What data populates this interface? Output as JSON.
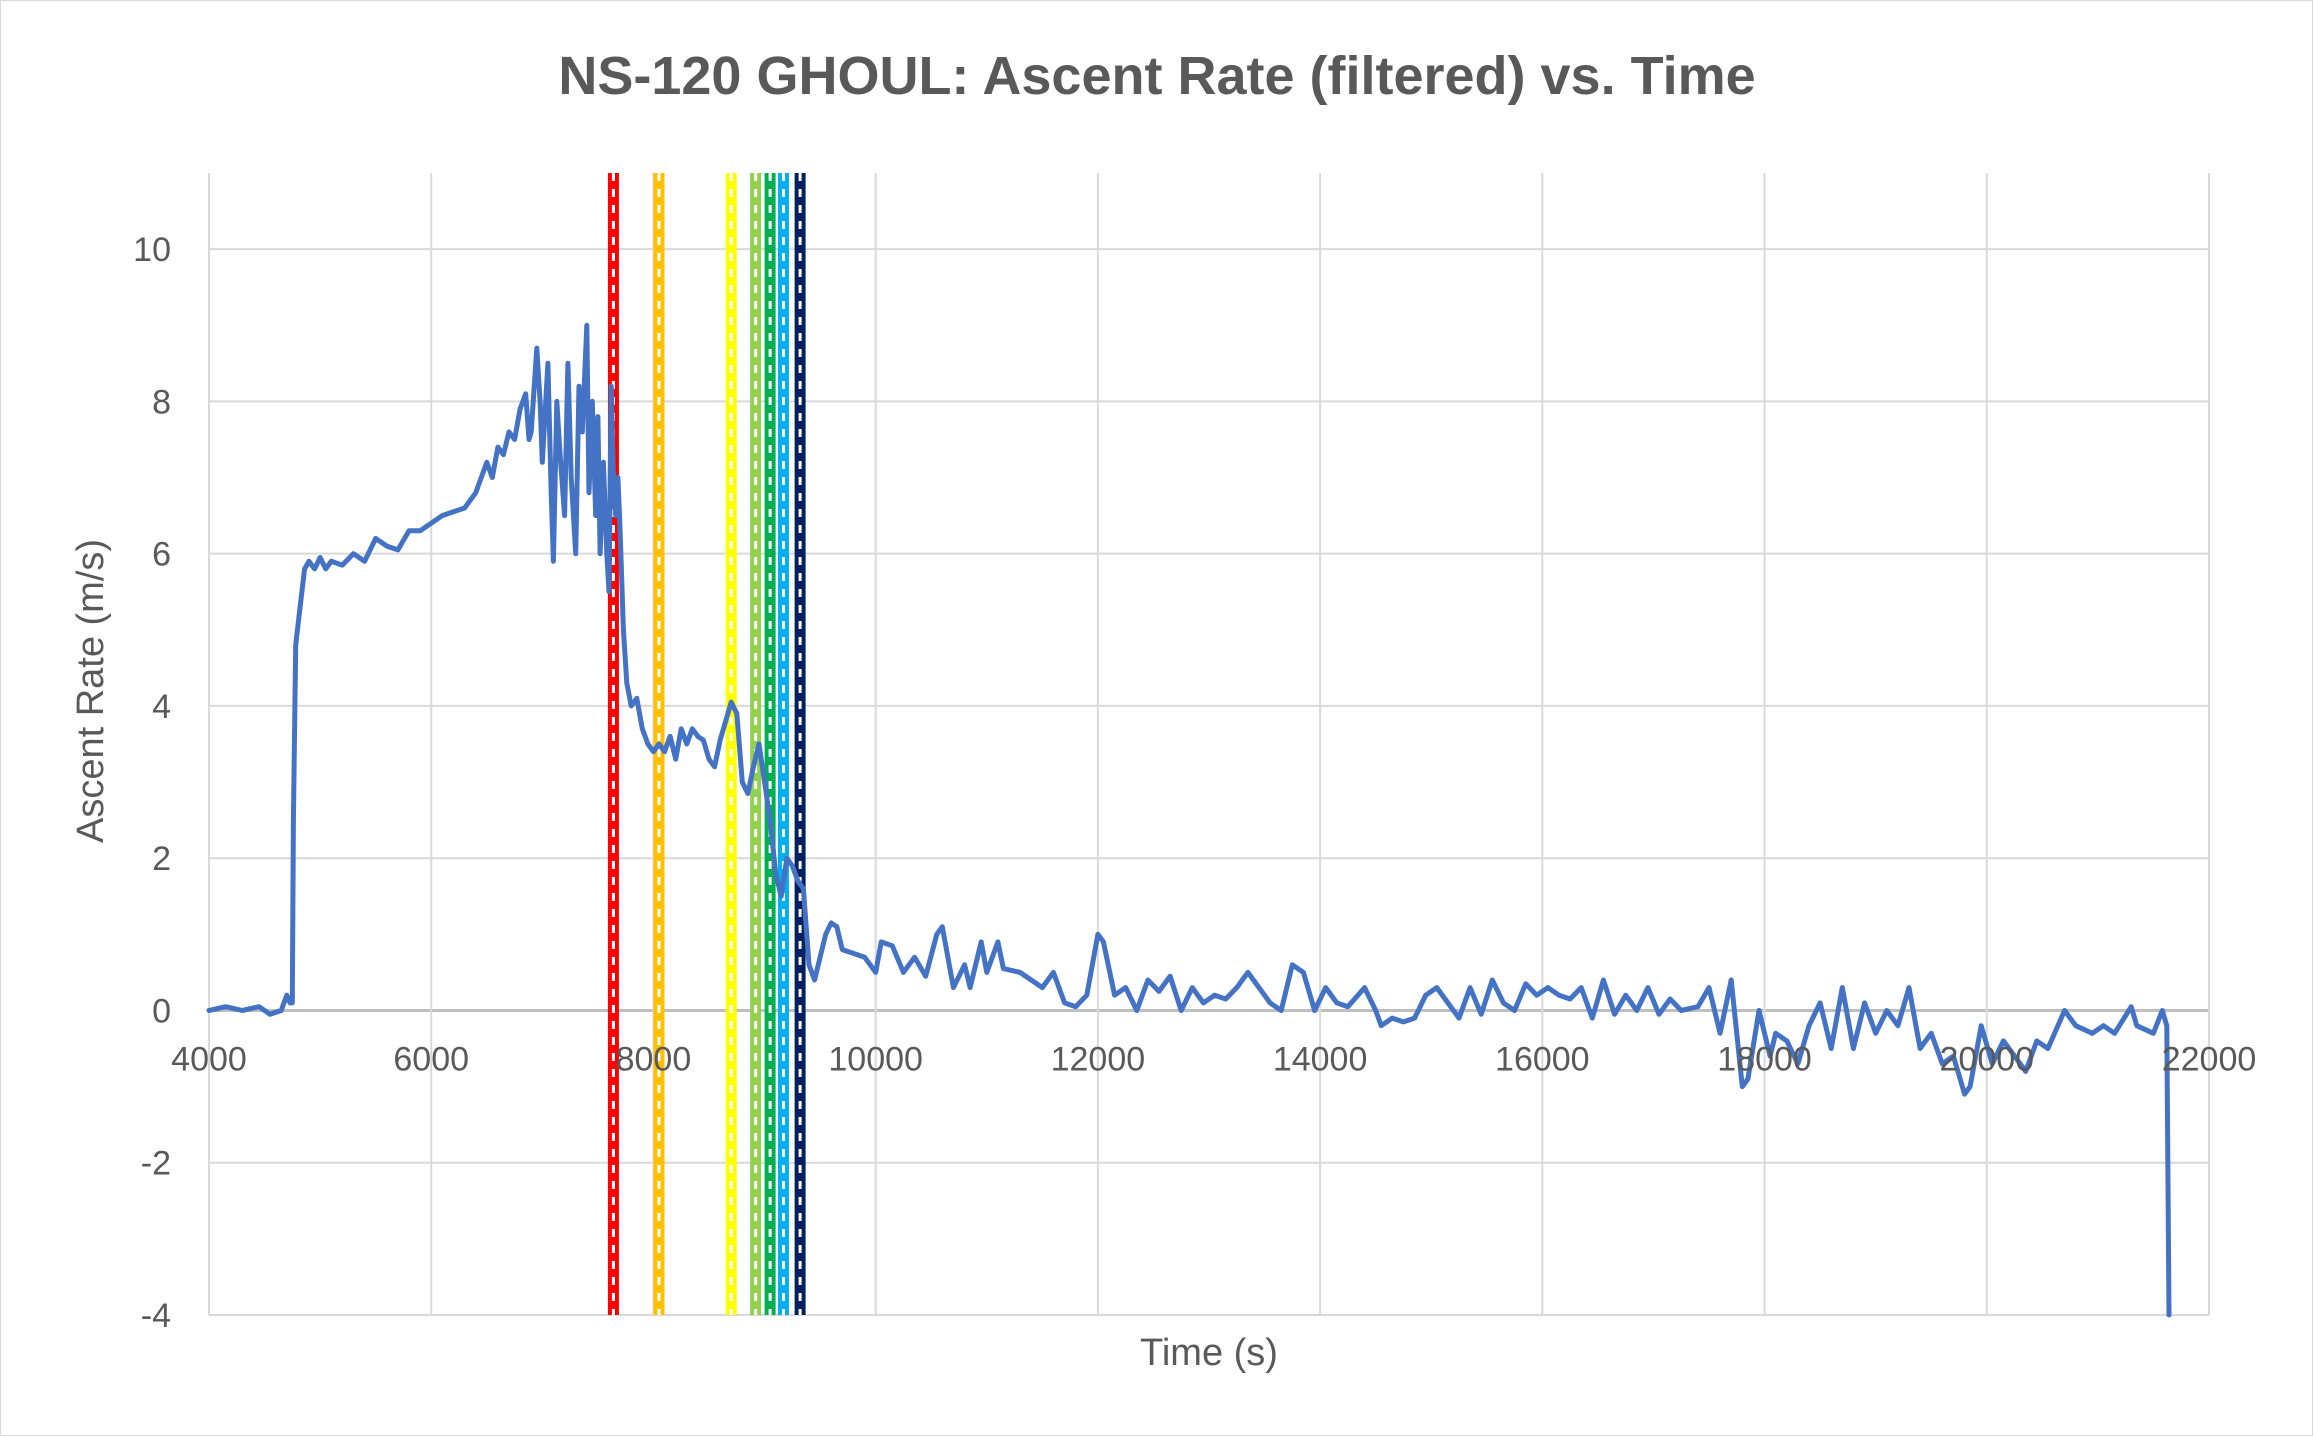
{
  "chart_data": {
    "type": "scatter",
    "title": "NS-120 GHOUL: Ascent Rate (filtered) vs. Time",
    "xlabel": "Time (s)",
    "ylabel": "Ascent Rate (m/s)",
    "xlim": [
      4000,
      22000
    ],
    "ylim": [
      -4,
      11
    ],
    "xticks": [
      4000,
      6000,
      8000,
      10000,
      12000,
      14000,
      16000,
      18000,
      20000,
      22000
    ],
    "yticks": [
      -4,
      -2,
      0,
      2,
      4,
      6,
      8,
      10
    ],
    "xtick_labels": [
      "4000",
      "6000",
      "8000",
      "10000",
      "12000",
      "14000",
      "16000",
      "18000",
      "20000",
      "22000"
    ],
    "ytick_labels": [
      "-4",
      "-2",
      "0",
      "2",
      "4",
      "6",
      "8",
      "10"
    ],
    "grid": true,
    "legend": "none",
    "colors": {
      "series": "#4472c4",
      "grid": "#d9d9d9",
      "text": "#595959",
      "axis": "#bfbfbf"
    },
    "series": [
      {
        "line_color": "#4472c4",
        "points": [
          [
            4000,
            0.0
          ],
          [
            4150,
            0.05
          ],
          [
            4300,
            0.0
          ],
          [
            4450,
            0.05
          ],
          [
            4550,
            -0.05
          ],
          [
            4650,
            0.0
          ],
          [
            4700,
            0.2
          ],
          [
            4730,
            0.1
          ],
          [
            4750,
            0.1
          ],
          [
            4760,
            2.5
          ],
          [
            4780,
            4.8
          ],
          [
            4820,
            5.3
          ],
          [
            4860,
            5.8
          ],
          [
            4900,
            5.9
          ],
          [
            4950,
            5.8
          ],
          [
            5000,
            5.95
          ],
          [
            5050,
            5.8
          ],
          [
            5100,
            5.9
          ],
          [
            5200,
            5.85
          ],
          [
            5300,
            6.0
          ],
          [
            5400,
            5.9
          ],
          [
            5500,
            6.2
          ],
          [
            5600,
            6.1
          ],
          [
            5700,
            6.05
          ],
          [
            5800,
            6.3
          ],
          [
            5900,
            6.3
          ],
          [
            6000,
            6.4
          ],
          [
            6100,
            6.5
          ],
          [
            6200,
            6.55
          ],
          [
            6300,
            6.6
          ],
          [
            6400,
            6.8
          ],
          [
            6500,
            7.2
          ],
          [
            6550,
            7.0
          ],
          [
            6600,
            7.4
          ],
          [
            6650,
            7.3
          ],
          [
            6700,
            7.6
          ],
          [
            6750,
            7.5
          ],
          [
            6800,
            7.9
          ],
          [
            6850,
            8.1
          ],
          [
            6880,
            7.5
          ],
          [
            6900,
            7.6
          ],
          [
            6950,
            8.7
          ],
          [
            6980,
            8.0
          ],
          [
            7000,
            7.2
          ],
          [
            7050,
            8.5
          ],
          [
            7080,
            6.8
          ],
          [
            7100,
            5.9
          ],
          [
            7130,
            8.0
          ],
          [
            7160,
            7.3
          ],
          [
            7200,
            6.5
          ],
          [
            7230,
            8.5
          ],
          [
            7260,
            7.0
          ],
          [
            7300,
            6.0
          ],
          [
            7330,
            8.2
          ],
          [
            7360,
            7.6
          ],
          [
            7400,
            9.0
          ],
          [
            7420,
            6.8
          ],
          [
            7450,
            8.0
          ],
          [
            7480,
            6.5
          ],
          [
            7500,
            7.8
          ],
          [
            7520,
            6.0
          ],
          [
            7550,
            7.2
          ],
          [
            7580,
            6.0
          ],
          [
            7600,
            5.5
          ],
          [
            7620,
            8.2
          ],
          [
            7640,
            7.0
          ],
          [
            7660,
            6.5
          ],
          [
            7680,
            7.0
          ],
          [
            7700,
            6.3
          ],
          [
            7730,
            5.0
          ],
          [
            7760,
            4.3
          ],
          [
            7800,
            4.0
          ],
          [
            7850,
            4.1
          ],
          [
            7900,
            3.7
          ],
          [
            7950,
            3.5
          ],
          [
            8000,
            3.4
          ],
          [
            8050,
            3.5
          ],
          [
            8100,
            3.4
          ],
          [
            8150,
            3.6
          ],
          [
            8200,
            3.3
          ],
          [
            8250,
            3.7
          ],
          [
            8300,
            3.5
          ],
          [
            8350,
            3.7
          ],
          [
            8400,
            3.6
          ],
          [
            8450,
            3.55
          ],
          [
            8500,
            3.3
          ],
          [
            8550,
            3.2
          ],
          [
            8600,
            3.55
          ],
          [
            8650,
            3.8
          ],
          [
            8700,
            4.05
          ],
          [
            8750,
            3.9
          ],
          [
            8800,
            3.0
          ],
          [
            8850,
            2.85
          ],
          [
            8900,
            3.2
          ],
          [
            8950,
            3.5
          ],
          [
            9000,
            3.0
          ],
          [
            9050,
            2.5
          ],
          [
            9100,
            1.8
          ],
          [
            9150,
            1.5
          ],
          [
            9200,
            2.0
          ],
          [
            9250,
            1.9
          ],
          [
            9300,
            1.7
          ],
          [
            9350,
            1.6
          ],
          [
            9400,
            0.6
          ],
          [
            9450,
            0.4
          ],
          [
            9500,
            0.7
          ],
          [
            9550,
            1.0
          ],
          [
            9600,
            1.15
          ],
          [
            9650,
            1.1
          ],
          [
            9700,
            0.8
          ],
          [
            9800,
            0.75
          ],
          [
            9900,
            0.7
          ],
          [
            10000,
            0.5
          ],
          [
            10050,
            0.9
          ],
          [
            10150,
            0.85
          ],
          [
            10250,
            0.5
          ],
          [
            10350,
            0.7
          ],
          [
            10450,
            0.45
          ],
          [
            10550,
            1.0
          ],
          [
            10600,
            1.1
          ],
          [
            10700,
            0.3
          ],
          [
            10800,
            0.6
          ],
          [
            10850,
            0.3
          ],
          [
            10950,
            0.9
          ],
          [
            11000,
            0.5
          ],
          [
            11100,
            0.9
          ],
          [
            11150,
            0.55
          ],
          [
            11300,
            0.5
          ],
          [
            11400,
            0.4
          ],
          [
            11500,
            0.3
          ],
          [
            11600,
            0.5
          ],
          [
            11700,
            0.1
          ],
          [
            11800,
            0.05
          ],
          [
            11900,
            0.2
          ],
          [
            12000,
            1.0
          ],
          [
            12050,
            0.9
          ],
          [
            12150,
            0.2
          ],
          [
            12250,
            0.3
          ],
          [
            12350,
            0.0
          ],
          [
            12450,
            0.4
          ],
          [
            12550,
            0.25
          ],
          [
            12650,
            0.45
          ],
          [
            12750,
            0.0
          ],
          [
            12850,
            0.3
          ],
          [
            12950,
            0.1
          ],
          [
            13050,
            0.2
          ],
          [
            13150,
            0.15
          ],
          [
            13250,
            0.3
          ],
          [
            13350,
            0.5
          ],
          [
            13450,
            0.3
          ],
          [
            13550,
            0.1
          ],
          [
            13650,
            0.0
          ],
          [
            13750,
            0.6
          ],
          [
            13850,
            0.5
          ],
          [
            13950,
            0.0
          ],
          [
            14050,
            0.3
          ],
          [
            14150,
            0.1
          ],
          [
            14250,
            0.05
          ],
          [
            14400,
            0.3
          ],
          [
            14500,
            0.0
          ],
          [
            14550,
            -0.2
          ],
          [
            14650,
            -0.1
          ],
          [
            14750,
            -0.15
          ],
          [
            14850,
            -0.1
          ],
          [
            14950,
            0.2
          ],
          [
            15050,
            0.3
          ],
          [
            15150,
            0.1
          ],
          [
            15250,
            -0.1
          ],
          [
            15350,
            0.3
          ],
          [
            15450,
            -0.05
          ],
          [
            15550,
            0.4
          ],
          [
            15650,
            0.1
          ],
          [
            15750,
            0.0
          ],
          [
            15850,
            0.35
          ],
          [
            15950,
            0.2
          ],
          [
            16050,
            0.3
          ],
          [
            16150,
            0.2
          ],
          [
            16250,
            0.15
          ],
          [
            16350,
            0.3
          ],
          [
            16450,
            -0.1
          ],
          [
            16550,
            0.4
          ],
          [
            16650,
            -0.05
          ],
          [
            16750,
            0.2
          ],
          [
            16850,
            0.0
          ],
          [
            16950,
            0.3
          ],
          [
            17050,
            -0.05
          ],
          [
            17150,
            0.15
          ],
          [
            17250,
            0.0
          ],
          [
            17400,
            0.05
          ],
          [
            17500,
            0.3
          ],
          [
            17600,
            -0.3
          ],
          [
            17700,
            0.4
          ],
          [
            17800,
            -1.0
          ],
          [
            17850,
            -0.9
          ],
          [
            17950,
            0.0
          ],
          [
            18050,
            -0.6
          ],
          [
            18100,
            -0.3
          ],
          [
            18200,
            -0.4
          ],
          [
            18300,
            -0.7
          ],
          [
            18400,
            -0.2
          ],
          [
            18500,
            0.1
          ],
          [
            18600,
            -0.5
          ],
          [
            18700,
            0.3
          ],
          [
            18800,
            -0.5
          ],
          [
            18900,
            0.1
          ],
          [
            19000,
            -0.3
          ],
          [
            19100,
            0.0
          ],
          [
            19200,
            -0.2
          ],
          [
            19300,
            0.3
          ],
          [
            19400,
            -0.5
          ],
          [
            19500,
            -0.3
          ],
          [
            19600,
            -0.7
          ],
          [
            19700,
            -0.6
          ],
          [
            19800,
            -1.1
          ],
          [
            19850,
            -1.0
          ],
          [
            19950,
            -0.2
          ],
          [
            20050,
            -0.7
          ],
          [
            20150,
            -0.4
          ],
          [
            20250,
            -0.6
          ],
          [
            20350,
            -0.8
          ],
          [
            20450,
            -0.4
          ],
          [
            20550,
            -0.5
          ],
          [
            20700,
            0.0
          ],
          [
            20800,
            -0.2
          ],
          [
            20950,
            -0.3
          ],
          [
            21050,
            -0.2
          ],
          [
            21150,
            -0.3
          ],
          [
            21300,
            0.05
          ],
          [
            21350,
            -0.2
          ],
          [
            21500,
            -0.3
          ],
          [
            21580,
            0.0
          ],
          [
            21620,
            -0.2
          ],
          [
            21640,
            -4.0
          ]
        ]
      }
    ],
    "vertical_lines": [
      {
        "x": 7640,
        "color": "#ff0000",
        "style": "dashed"
      },
      {
        "x": 8050,
        "color": "#ffc000",
        "style": "dashed"
      },
      {
        "x": 8700,
        "color": "#ffff00",
        "style": "dashed"
      },
      {
        "x": 8920,
        "color": "#92d050",
        "style": "dashed"
      },
      {
        "x": 9050,
        "color": "#00b050",
        "style": "dashed"
      },
      {
        "x": 9170,
        "color": "#00b0f0",
        "style": "dashed"
      },
      {
        "x": 9320,
        "color": "#002060",
        "style": "dashed"
      }
    ]
  }
}
